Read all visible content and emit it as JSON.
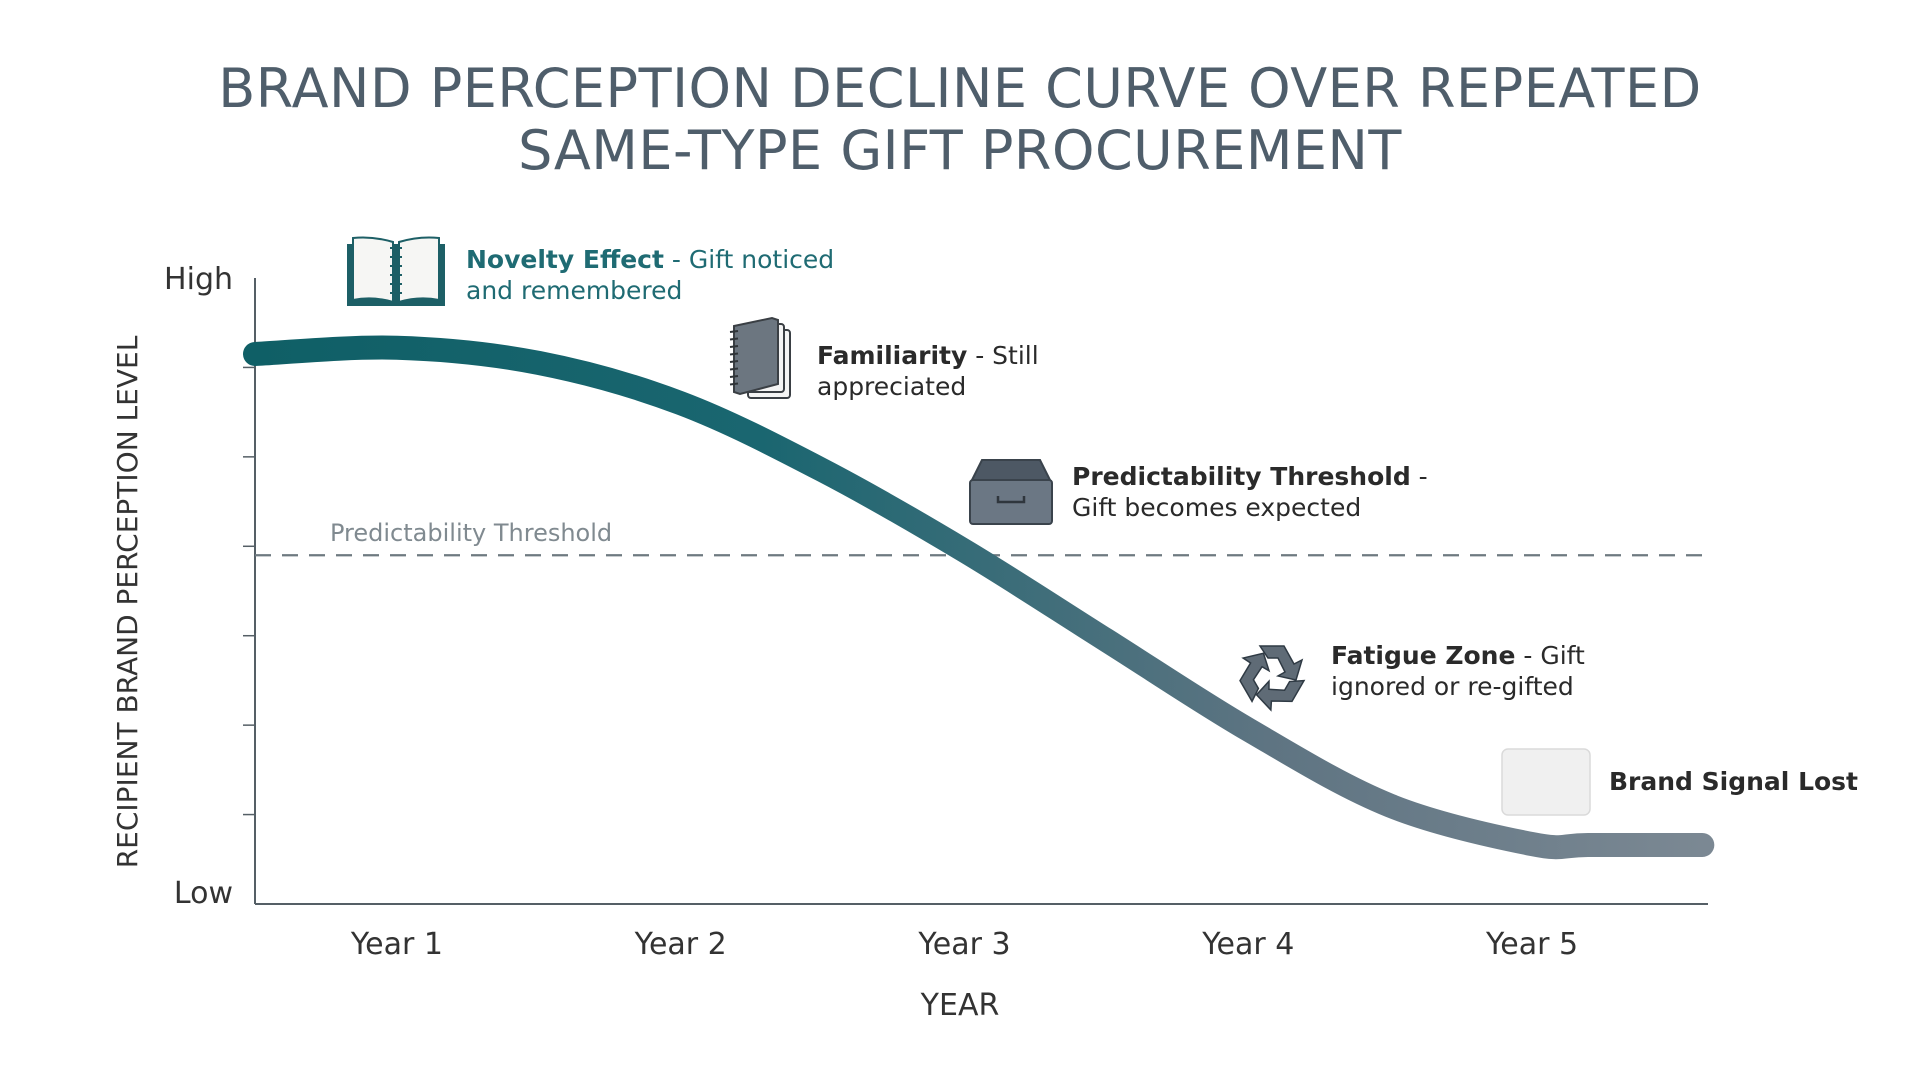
{
  "chart_data": {
    "type": "line",
    "title": [
      "BRAND PERCEPTION DECLINE CURVE OVER REPEATED",
      "SAME-TYPE GIFT PROCUREMENT"
    ],
    "xlabel": "YEAR",
    "ylabel": "RECIPIENT BRAND PERCEPTION LEVEL",
    "x_categories": [
      "Year 1",
      "Year 2",
      "Year 3",
      "Year 4",
      "Year 5"
    ],
    "y_tick_labels": {
      "high": "High",
      "low": "Low"
    },
    "ylim": [
      0,
      7
    ],
    "x_range": [
      0.5,
      5.62
    ],
    "series": [
      {
        "x": [
          0.5,
          1.0,
          1.5,
          2.0,
          2.5,
          3.0,
          3.5,
          4.0,
          4.5,
          5.0,
          5.2,
          5.6
        ],
        "y": [
          6.15,
          6.22,
          6.05,
          5.6,
          4.85,
          3.95,
          2.95,
          1.95,
          1.1,
          0.67,
          0.66,
          0.66
        ]
      }
    ],
    "threshold": {
      "label": "Predictability Threshold",
      "y": 3.9
    },
    "annotations": [
      {
        "bold": "Novelty Effect",
        "text": " - Gift noticed",
        "text2": "and remembered",
        "icon": "open-book-icon"
      },
      {
        "bold": "Familiarity",
        "text": " - Still",
        "text2": "appreciated",
        "icon": "notebook-icon"
      },
      {
        "bold": "Predictability Threshold",
        "text": " -",
        "text2": "Gift becomes expected",
        "icon": "storage-box-icon"
      },
      {
        "bold": "Fatigue Zone",
        "text": " - Gift",
        "text2": "ignored or re-gifted",
        "icon": "recycle-icon"
      },
      {
        "bold": "Brand Signal Lost",
        "text": "",
        "text2": "",
        "icon": "blank-square-icon"
      }
    ],
    "colors": {
      "curve_start": "#0f5f66",
      "curve_end": "#7b8893",
      "axis": "#555f66",
      "threshold": "#6e7a80",
      "title": "#4f5e6b",
      "teal_text": "#1f6b73"
    },
    "grid": false
  }
}
